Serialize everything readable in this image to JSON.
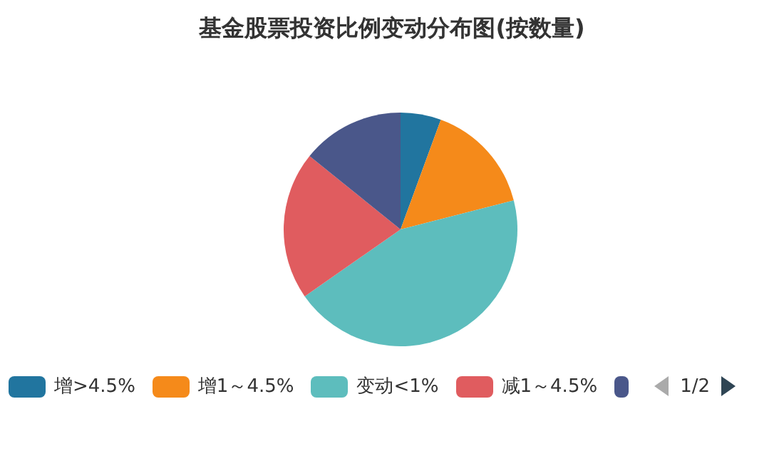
{
  "chart_data": {
    "type": "pie",
    "title": "基金股票投资比例变动分布图(按数量)",
    "categories": [
      "增>4.5%",
      "增1～4.5%",
      "变动<1%",
      "减1～4.5%",
      null
    ],
    "values": [
      5.6,
      15.4,
      44.3,
      20.5,
      14.2
    ],
    "colors": [
      "#21759f",
      "#f58a1a",
      "#5dbdbd",
      "#e05c5f",
      "#4a578a"
    ],
    "legend": "bottom",
    "annotations": [
      "1/2"
    ]
  }
}
